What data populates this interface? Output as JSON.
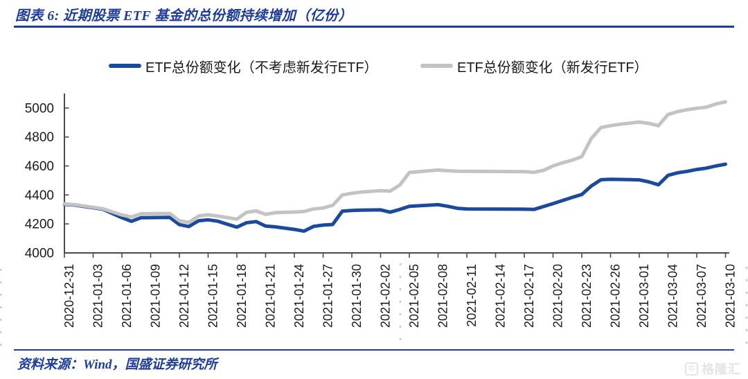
{
  "figure": {
    "title": "图表 6:  近期股票 ETF 基金的总份额持续增加（亿份）",
    "source_label": "资料来源：Wind，国盛证券研究所",
    "watermark": {
      "icon_letter": "G",
      "brand": "格隆汇"
    }
  },
  "colors": {
    "accent_blue": "#1e3c9a",
    "line_blue": "#1b499b",
    "line_gray": "#c3c3c3",
    "axis": "#4a4a4a",
    "text": "#1a1a1a",
    "watermark_gray": "#e4e4e4",
    "border_dash_blue": "#7d9bd2"
  },
  "legend": {
    "items": [
      {
        "label": "ETF总份额变化（不考虑新发行ETF）",
        "color": "#1b499b"
      },
      {
        "label": "ETF总份额变化（新发行ETF）",
        "color": "#c3c3c3"
      }
    ]
  },
  "chart_data": {
    "type": "line",
    "title": "近期股票ETF基金的总份额持续增加",
    "unit": "亿份",
    "grid": false,
    "legend_position": "top",
    "ylim": [
      4000,
      5100
    ],
    "yticks": [
      4000,
      4200,
      4400,
      4600,
      4800,
      5000
    ],
    "x_tick_step_days": 3,
    "x_range_days": [
      0,
      69
    ],
    "x_tick_labels": [
      "2020-12-31",
      "2021-01-03",
      "2021-01-06",
      "2021-01-09",
      "2021-01-12",
      "2021-01-15",
      "2021-01-18",
      "2021-01-21",
      "2021-01-24",
      "2021-01-27",
      "2021-01-30",
      "2021-02-02",
      "2021-02-05",
      "2021-02-08",
      "2021-02-11",
      "2021-02-14",
      "2021-02-17",
      "2021-02-20",
      "2021-02-23",
      "2021-02-26",
      "2021-03-01",
      "2021-03-04",
      "2021-03-07",
      "2021-03-10"
    ],
    "series": [
      {
        "name": "ETF总份额变化（不考虑新发行ETF）",
        "color": "#1b499b",
        "points": [
          [
            0,
            4335
          ],
          [
            1,
            4331
          ],
          [
            4,
            4302
          ],
          [
            6,
            4243
          ],
          [
            7,
            4218
          ],
          [
            8,
            4243
          ],
          [
            11,
            4245
          ],
          [
            12,
            4195
          ],
          [
            13,
            4182
          ],
          [
            14,
            4222
          ],
          [
            15,
            4228
          ],
          [
            16,
            4219
          ],
          [
            17,
            4198
          ],
          [
            18,
            4178
          ],
          [
            19,
            4208
          ],
          [
            20,
            4216
          ],
          [
            21,
            4185
          ],
          [
            22,
            4180
          ],
          [
            24,
            4162
          ],
          [
            25,
            4150
          ],
          [
            26,
            4183
          ],
          [
            27,
            4192
          ],
          [
            28,
            4196
          ],
          [
            29,
            4288
          ],
          [
            30,
            4293
          ],
          [
            31,
            4295
          ],
          [
            33,
            4297
          ],
          [
            34,
            4281
          ],
          [
            35,
            4300
          ],
          [
            36,
            4322
          ],
          [
            39,
            4333
          ],
          [
            40,
            4322
          ],
          [
            41,
            4308
          ],
          [
            42,
            4303
          ],
          [
            48,
            4302
          ],
          [
            49,
            4300
          ],
          [
            51,
            4340
          ],
          [
            53,
            4383
          ],
          [
            54,
            4403
          ],
          [
            55,
            4462
          ],
          [
            56,
            4505
          ],
          [
            57,
            4508
          ],
          [
            59,
            4506
          ],
          [
            60,
            4504
          ],
          [
            61,
            4490
          ],
          [
            62,
            4470
          ],
          [
            63,
            4535
          ],
          [
            64,
            4553
          ],
          [
            65,
            4563
          ],
          [
            66,
            4576
          ],
          [
            67,
            4585
          ],
          [
            68,
            4600
          ],
          [
            69,
            4612
          ]
        ]
      },
      {
        "name": "ETF总份额变化（新发行ETF）",
        "color": "#c3c3c3",
        "points": [
          [
            0,
            4338
          ],
          [
            1,
            4334
          ],
          [
            4,
            4305
          ],
          [
            6,
            4262
          ],
          [
            7,
            4248
          ],
          [
            8,
            4270
          ],
          [
            11,
            4272
          ],
          [
            12,
            4222
          ],
          [
            13,
            4210
          ],
          [
            14,
            4255
          ],
          [
            15,
            4263
          ],
          [
            16,
            4254
          ],
          [
            17,
            4244
          ],
          [
            18,
            4233
          ],
          [
            19,
            4280
          ],
          [
            20,
            4290
          ],
          [
            21,
            4266
          ],
          [
            22,
            4278
          ],
          [
            24,
            4282
          ],
          [
            25,
            4286
          ],
          [
            26,
            4303
          ],
          [
            27,
            4310
          ],
          [
            28,
            4328
          ],
          [
            29,
            4400
          ],
          [
            30,
            4412
          ],
          [
            31,
            4420
          ],
          [
            33,
            4430
          ],
          [
            34,
            4426
          ],
          [
            35,
            4468
          ],
          [
            36,
            4555
          ],
          [
            39,
            4572
          ],
          [
            40,
            4567
          ],
          [
            41,
            4564
          ],
          [
            42,
            4563
          ],
          [
            48,
            4561
          ],
          [
            49,
            4556
          ],
          [
            50,
            4570
          ],
          [
            51,
            4600
          ],
          [
            52,
            4622
          ],
          [
            53,
            4640
          ],
          [
            54,
            4665
          ],
          [
            55,
            4790
          ],
          [
            56,
            4865
          ],
          [
            57,
            4878
          ],
          [
            58,
            4888
          ],
          [
            59,
            4896
          ],
          [
            60,
            4903
          ],
          [
            61,
            4894
          ],
          [
            62,
            4878
          ],
          [
            63,
            4955
          ],
          [
            64,
            4975
          ],
          [
            65,
            4988
          ],
          [
            66,
            4998
          ],
          [
            67,
            5006
          ],
          [
            68,
            5028
          ],
          [
            69,
            5043
          ]
        ]
      }
    ]
  }
}
